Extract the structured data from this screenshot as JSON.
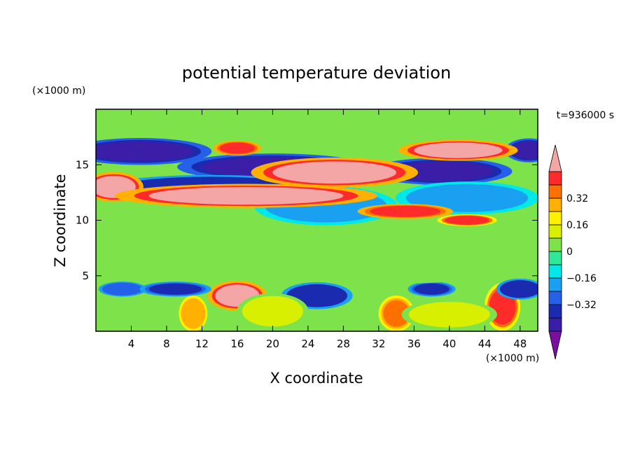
{
  "chart_data": {
    "type": "heatmap",
    "title": "potential temperature deviation",
    "xlabel": "X coordinate",
    "ylabel": "Z coordinate",
    "x_unit": "(×1000 m)",
    "y_unit": "(×1000 m)",
    "time_label": "t=936000 s",
    "xlim": [
      0,
      50
    ],
    "ylim": [
      0,
      20
    ],
    "x_ticks": [
      4,
      8,
      12,
      16,
      20,
      24,
      28,
      32,
      36,
      40,
      44,
      48
    ],
    "y_ticks": [
      5,
      10,
      15
    ],
    "colorbar": {
      "levels": [
        -0.48,
        -0.4,
        -0.32,
        -0.24,
        -0.16,
        -0.08,
        0,
        0.08,
        0.16,
        0.24,
        0.32,
        0.4,
        0.48
      ],
      "tick_values": [
        0.32,
        0.16,
        0,
        -0.16,
        -0.32
      ],
      "tick_labels": [
        "0.32",
        "0.16",
        "0",
        "−0.16",
        "−0.32"
      ],
      "colors": [
        "#7a0fa0",
        "#3a1ea8",
        "#1a2bb0",
        "#2560e8",
        "#1aa0f0",
        "#00e8e8",
        "#30e898",
        "#7ee34a",
        "#d8f000",
        "#fff000",
        "#ffb000",
        "#ff7000",
        "#ff2a2a",
        "#f4a6a6"
      ],
      "extend": "both"
    },
    "features": [
      {
        "x": 5,
        "y": 16.2,
        "rx": 6,
        "ry": 0.9,
        "v": -0.45
      },
      {
        "x": 20,
        "y": 14.8,
        "rx": 8,
        "ry": 0.9,
        "v": -0.45
      },
      {
        "x": 39,
        "y": 14.4,
        "rx": 6,
        "ry": 0.9,
        "v": -0.45
      },
      {
        "x": 13,
        "y": 13.0,
        "rx": 9,
        "ry": 0.8,
        "v": -0.4
      },
      {
        "x": 26,
        "y": 11.3,
        "rx": 6,
        "ry": 1.3,
        "v": -0.24
      },
      {
        "x": 42,
        "y": 12.0,
        "rx": 6,
        "ry": 1.1,
        "v": -0.24
      },
      {
        "x": 49,
        "y": 16.3,
        "rx": 2,
        "ry": 0.8,
        "v": -0.45
      },
      {
        "x": 2,
        "y": 13.0,
        "rx": 2.5,
        "ry": 1.0,
        "v": 0.5
      },
      {
        "x": 17,
        "y": 12.2,
        "rx": 11,
        "ry": 0.8,
        "v": 0.5
      },
      {
        "x": 27,
        "y": 14.3,
        "rx": 7,
        "ry": 1.0,
        "v": 0.5
      },
      {
        "x": 41,
        "y": 16.3,
        "rx": 5,
        "ry": 0.7,
        "v": 0.5
      },
      {
        "x": 35,
        "y": 10.8,
        "rx": 4,
        "ry": 0.5,
        "v": 0.45
      },
      {
        "x": 42,
        "y": 10.0,
        "rx": 2.5,
        "ry": 0.4,
        "v": 0.4
      },
      {
        "x": 16,
        "y": 16.5,
        "rx": 2,
        "ry": 0.5,
        "v": 0.45
      },
      {
        "x": 16,
        "y": 3.2,
        "rx": 2.5,
        "ry": 1.0,
        "v": 0.5
      },
      {
        "x": 46,
        "y": 2.2,
        "rx": 1.5,
        "ry": 1.6,
        "v": 0.4
      },
      {
        "x": 34,
        "y": 1.6,
        "rx": 1.5,
        "ry": 1.2,
        "v": 0.35
      },
      {
        "x": 11,
        "y": 1.6,
        "rx": 1.2,
        "ry": 1.2,
        "v": 0.3
      },
      {
        "x": 25,
        "y": 3.2,
        "rx": 3,
        "ry": 0.9,
        "v": -0.4
      },
      {
        "x": 38,
        "y": 3.8,
        "rx": 2,
        "ry": 0.5,
        "v": -0.35
      },
      {
        "x": 3,
        "y": 3.8,
        "rx": 2,
        "ry": 0.5,
        "v": -0.32
      },
      {
        "x": 48,
        "y": 3.8,
        "rx": 2,
        "ry": 0.7,
        "v": -0.4
      },
      {
        "x": 9,
        "y": 3.8,
        "rx": 3,
        "ry": 0.5,
        "v": -0.35
      },
      {
        "x": 20,
        "y": 1.8,
        "rx": 3,
        "ry": 1.2,
        "v": 0.1
      },
      {
        "x": 40,
        "y": 1.5,
        "rx": 4,
        "ry": 1.0,
        "v": 0.12
      },
      {
        "x": 25,
        "y": 18.5,
        "rx": 8,
        "ry": 1.0,
        "v": 0.05
      },
      {
        "x": 10,
        "y": 7.5,
        "rx": 10,
        "ry": 2.0,
        "v": 0.04
      },
      {
        "x": 35,
        "y": 7.0,
        "rx": 10,
        "ry": 2.0,
        "v": 0.02
      }
    ]
  }
}
